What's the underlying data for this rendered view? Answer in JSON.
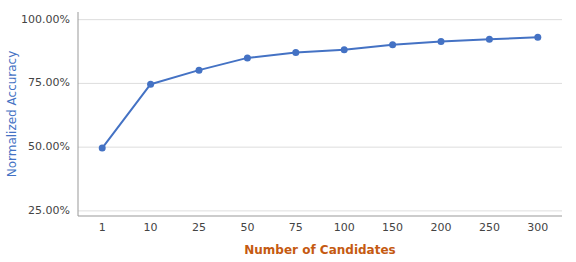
{
  "chart_data": {
    "type": "line",
    "x_label": "Number of Candidates",
    "y_label": "Normalized Accuracy",
    "categories": [
      "1",
      "10",
      "25",
      "50",
      "75",
      "100",
      "150",
      "200",
      "250",
      "300"
    ],
    "values": [
      0.4965,
      0.747,
      0.802,
      0.85,
      0.871,
      0.882,
      0.902,
      0.914,
      0.923,
      0.931
    ],
    "color": "#4472C4",
    "marker": "circle",
    "ylim": [
      0.23,
      1.03
    ],
    "yticks": [
      {
        "value": 0.25,
        "label": "25.00%"
      },
      {
        "value": 0.5,
        "label": "50.00%"
      },
      {
        "value": 0.75,
        "label": "75.00%"
      },
      {
        "value": 1.0,
        "label": "100.00%"
      }
    ],
    "grid": true
  }
}
